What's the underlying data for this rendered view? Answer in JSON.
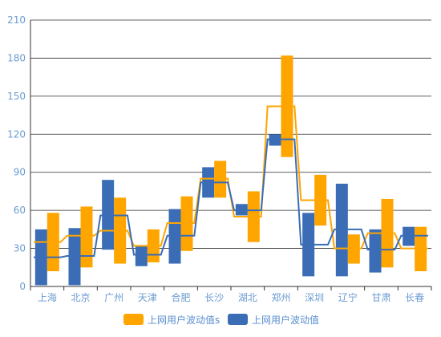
{
  "chart_data": {
    "type": "candlestick-step",
    "title": "",
    "xlabel": "",
    "ylabel": "",
    "ylim": [
      0,
      210
    ],
    "yticks": [
      0,
      30,
      60,
      90,
      120,
      150,
      180,
      210
    ],
    "grid": true,
    "legend_position": "bottom-center",
    "categories": [
      "上海",
      "北京",
      "广州",
      "天津",
      "合肥",
      "长沙",
      "湖北",
      "郑州",
      "深圳",
      "辽宁",
      "甘肃",
      "长春"
    ],
    "series": [
      {
        "name": "上网用户波动值s",
        "color": "#FFA500",
        "ranges": [
          [
            12,
            58
          ],
          [
            15,
            63
          ],
          [
            18,
            70
          ],
          [
            19,
            45
          ],
          [
            28,
            71
          ],
          [
            70,
            99
          ],
          [
            35,
            75
          ],
          [
            102,
            182
          ],
          [
            48,
            88
          ],
          [
            18,
            41
          ],
          [
            15,
            69
          ],
          [
            12,
            47
          ]
        ],
        "step": [
          35,
          40,
          44,
          32,
          50,
          85,
          55,
          142,
          68,
          30,
          42,
          30
        ]
      },
      {
        "name": "上网用户波动值",
        "color": "#3A6DB5",
        "ranges": [
          [
            1,
            45
          ],
          [
            1,
            46
          ],
          [
            29,
            84
          ],
          [
            16,
            32
          ],
          [
            18,
            61
          ],
          [
            70,
            94
          ],
          [
            56,
            65
          ],
          [
            111,
            120
          ],
          [
            8,
            58
          ],
          [
            8,
            81
          ],
          [
            11,
            45
          ],
          [
            32,
            47
          ]
        ],
        "step": [
          23,
          24,
          56,
          25,
          40,
          82,
          60,
          116,
          33,
          45,
          29,
          40
        ]
      }
    ]
  }
}
